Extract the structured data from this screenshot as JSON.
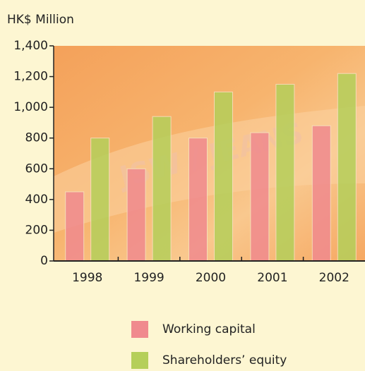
{
  "chart_data": {
    "type": "bar",
    "y_label": "HK$ Million",
    "annotation": "JSW / JEANS",
    "categories": [
      "1998",
      "1999",
      "2000",
      "2001",
      "2002"
    ],
    "series": [
      {
        "name": "Working capital",
        "color": "#f08a8e",
        "values": [
          450,
          600,
          800,
          835,
          880
        ]
      },
      {
        "name": "Shareholders’ equity",
        "color": "#b5cf5a",
        "values": [
          800,
          940,
          1100,
          1150,
          1220
        ]
      }
    ],
    "ylim": [
      0,
      1400
    ],
    "yticks": [
      0,
      200,
      400,
      600,
      800,
      {
        "value": 1000,
        "label": "1,000"
      },
      {
        "value": 1200,
        "label": "1,200"
      },
      {
        "value": 1400,
        "label": "1,400"
      }
    ]
  }
}
